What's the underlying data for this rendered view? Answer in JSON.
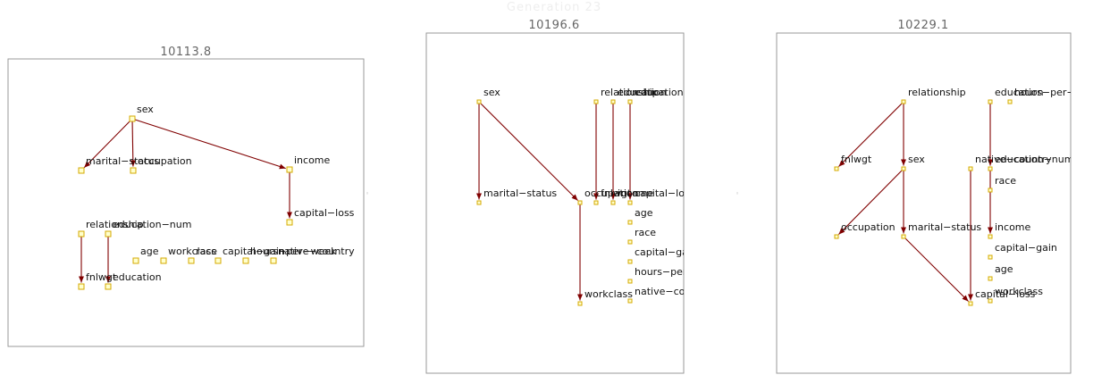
{
  "title": "Generation 23",
  "colors": {
    "edge": "#800000",
    "node_fill": "#ffffcc",
    "node_stroke": "#d4aa00",
    "frame": "#999999"
  },
  "panels": [
    {
      "score": "10113.8",
      "nodes": [
        {
          "id": "sex",
          "label": "sex"
        },
        {
          "id": "marital",
          "label": "marital−status"
        },
        {
          "id": "occupation",
          "label": "occupation"
        },
        {
          "id": "income",
          "label": "income"
        },
        {
          "id": "capital_loss",
          "label": "capital−loss"
        },
        {
          "id": "relationship",
          "label": "relationship"
        },
        {
          "id": "education_num",
          "label": "education−num"
        },
        {
          "id": "age",
          "label": "age"
        },
        {
          "id": "workclass",
          "label": "workclass"
        },
        {
          "id": "race",
          "label": "race"
        },
        {
          "id": "capital_gain",
          "label": "capital−gain"
        },
        {
          "id": "hours",
          "label": "hours−per−week"
        },
        {
          "id": "native",
          "label": "native−country"
        },
        {
          "id": "fnlwgt",
          "label": "fnlwgt"
        },
        {
          "id": "education",
          "label": "education"
        }
      ],
      "edges": [
        [
          "sex",
          "marital"
        ],
        [
          "sex",
          "occupation"
        ],
        [
          "sex",
          "income"
        ],
        [
          "income",
          "capital_loss"
        ],
        [
          "relationship",
          "fnlwgt"
        ],
        [
          "education_num",
          "education"
        ]
      ]
    },
    {
      "score": "10196.6",
      "nodes": [
        {
          "id": "sex",
          "label": "sex"
        },
        {
          "id": "relationship",
          "label": "relationship"
        },
        {
          "id": "education",
          "label": "education"
        },
        {
          "id": "education_num",
          "label": "education−num"
        },
        {
          "id": "marital",
          "label": "marital−status"
        },
        {
          "id": "occupation",
          "label": "occupation"
        },
        {
          "id": "fnlwgt",
          "label": "fnlwgt"
        },
        {
          "id": "income",
          "label": "income"
        },
        {
          "id": "capital_loss",
          "label": "capital−loss"
        },
        {
          "id": "age",
          "label": "age"
        },
        {
          "id": "race",
          "label": "race"
        },
        {
          "id": "capital_gain",
          "label": "capital−gain"
        },
        {
          "id": "hours",
          "label": "hours−per−week"
        },
        {
          "id": "native",
          "label": "native−country"
        },
        {
          "id": "workclass",
          "label": "workclass"
        }
      ],
      "edges": [
        [
          "sex",
          "marital"
        ],
        [
          "sex",
          "occupation"
        ],
        [
          "relationship",
          "fnlwgt"
        ],
        [
          "education",
          "income"
        ],
        [
          "education_num",
          "capital_loss"
        ],
        [
          "occupation",
          "workclass"
        ]
      ]
    },
    {
      "score": "10229.1",
      "nodes": [
        {
          "id": "relationship",
          "label": "relationship"
        },
        {
          "id": "education",
          "label": "education"
        },
        {
          "id": "hours",
          "label": "hours−per−week"
        },
        {
          "id": "fnlwgt",
          "label": "fnlwgt"
        },
        {
          "id": "sex",
          "label": "sex"
        },
        {
          "id": "native",
          "label": "native−country"
        },
        {
          "id": "education_num",
          "label": "education−num"
        },
        {
          "id": "race",
          "label": "race"
        },
        {
          "id": "occupation",
          "label": "occupation"
        },
        {
          "id": "marital",
          "label": "marital−status"
        },
        {
          "id": "income",
          "label": "income"
        },
        {
          "id": "capital_gain",
          "label": "capital−gain"
        },
        {
          "id": "age",
          "label": "age"
        },
        {
          "id": "workclass",
          "label": "workclass"
        },
        {
          "id": "capital_loss",
          "label": "capital−loss"
        }
      ],
      "edges": [
        [
          "relationship",
          "fnlwgt"
        ],
        [
          "relationship",
          "sex"
        ],
        [
          "sex",
          "occupation"
        ],
        [
          "sex",
          "marital"
        ],
        [
          "marital",
          "capital_loss"
        ],
        [
          "native",
          "capital_loss"
        ],
        [
          "education",
          "education_num"
        ],
        [
          "education_num",
          "income"
        ]
      ]
    }
  ]
}
